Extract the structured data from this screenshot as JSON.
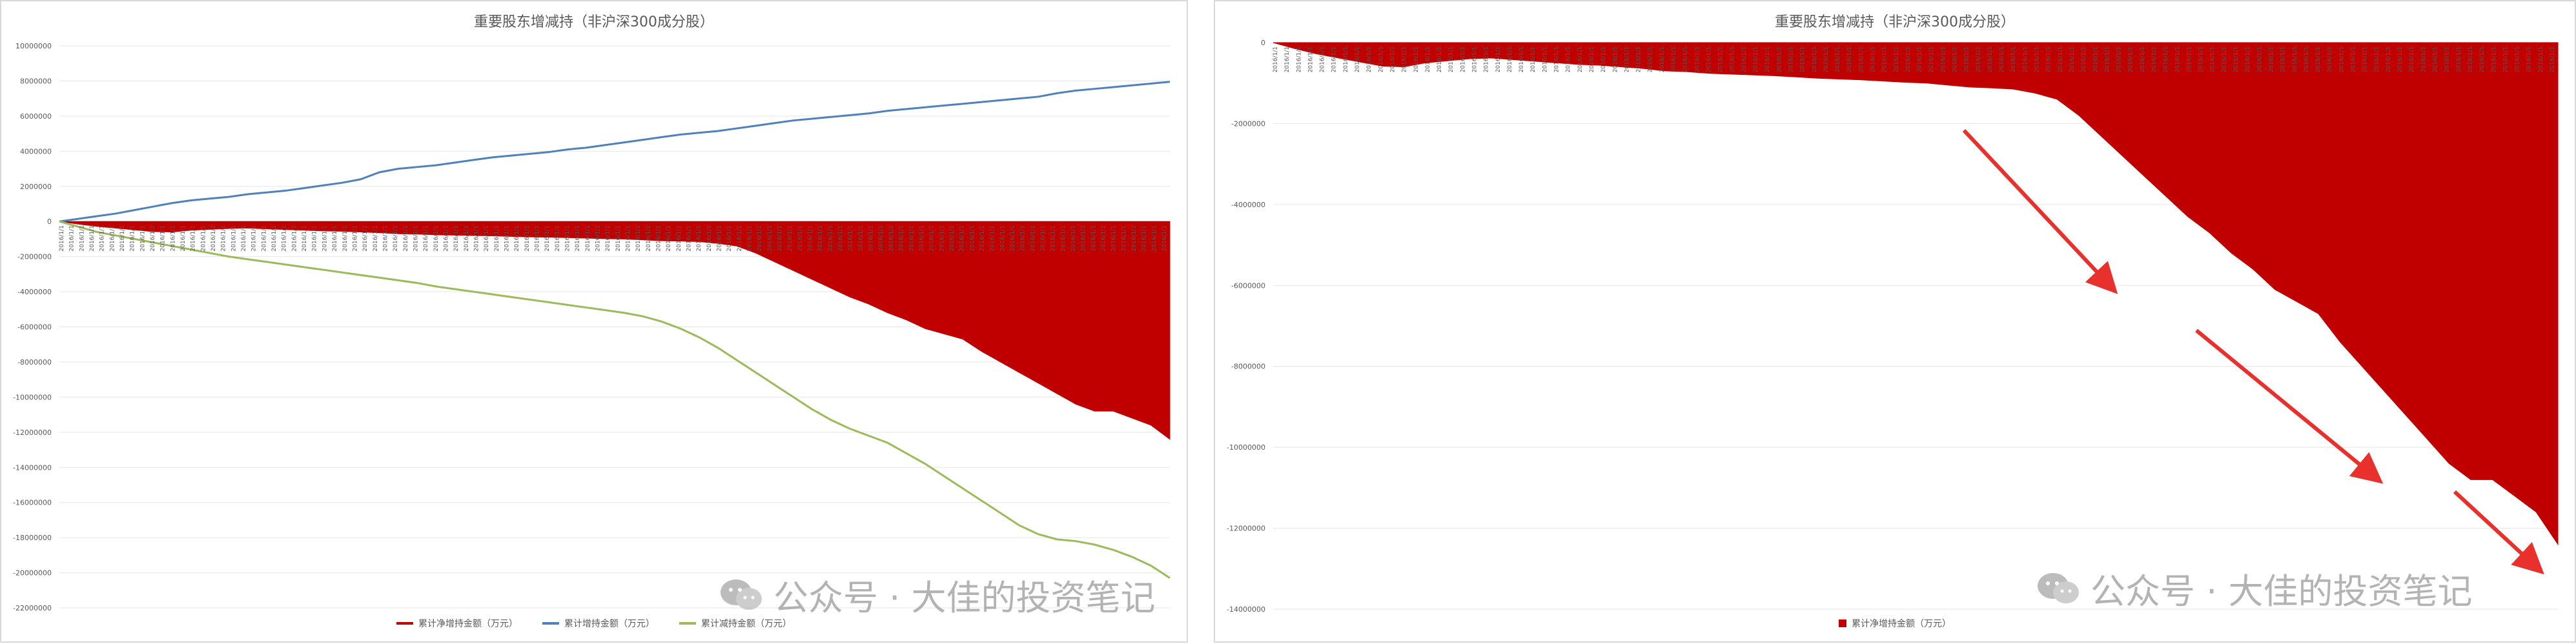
{
  "watermark": {
    "text": "公众号 · 大佳的投资笔记",
    "icon": "wechat-icon"
  },
  "chart_data": [
    {
      "type": "area",
      "title": "重要股东增减持（非沪深300成分股）",
      "ylim": [
        -22000000,
        10000000
      ],
      "y_ticks": [
        10000000,
        8000000,
        6000000,
        4000000,
        2000000,
        0,
        -2000000,
        -4000000,
        -6000000,
        -8000000,
        -10000000,
        -12000000,
        -14000000,
        -16000000,
        -18000000,
        -20000000,
        -22000000
      ],
      "grid": true,
      "legend": "bottom",
      "x_tick_label": "2016/1/1",
      "x_tick_count": 110,
      "x_points": 60,
      "series": [
        {
          "name": "累计净增持金额（万元）",
          "kind": "area",
          "color": "#c00000",
          "values": [
            0,
            -150000,
            -280000,
            -380000,
            -480000,
            -580000,
            -600000,
            -500000,
            -450000,
            -400000,
            -380000,
            -420000,
            -460000,
            -500000,
            -540000,
            -560000,
            -600000,
            -640000,
            -700000,
            -720000,
            -760000,
            -780000,
            -800000,
            -820000,
            -850000,
            -880000,
            -900000,
            -920000,
            -950000,
            -980000,
            -1000000,
            -1050000,
            -1100000,
            -1120000,
            -1150000,
            -1250000,
            -1400000,
            -1800000,
            -2300000,
            -2800000,
            -3300000,
            -3800000,
            -4300000,
            -4700000,
            -5200000,
            -5600000,
            -6100000,
            -6400000,
            -6700000,
            -7400000,
            -8000000,
            -8600000,
            -9200000,
            -9800000,
            -10400000,
            -10800000,
            -10800000,
            -11200000,
            -11600000,
            -12400000
          ]
        },
        {
          "name": "累计增持金额（万元）",
          "kind": "line",
          "color": "#4f81bd",
          "values": [
            0,
            150000,
            300000,
            450000,
            650000,
            850000,
            1050000,
            1200000,
            1300000,
            1400000,
            1550000,
            1650000,
            1750000,
            1900000,
            2050000,
            2200000,
            2400000,
            2800000,
            3000000,
            3100000,
            3200000,
            3350000,
            3500000,
            3650000,
            3750000,
            3850000,
            3950000,
            4100000,
            4200000,
            4350000,
            4500000,
            4650000,
            4800000,
            4950000,
            5050000,
            5150000,
            5300000,
            5450000,
            5600000,
            5750000,
            5850000,
            5950000,
            6050000,
            6150000,
            6300000,
            6400000,
            6500000,
            6600000,
            6700000,
            6800000,
            6900000,
            7000000,
            7100000,
            7300000,
            7450000,
            7550000,
            7650000,
            7750000,
            7850000,
            7950000
          ]
        },
        {
          "name": "累计减持金额（万元）",
          "kind": "line",
          "color": "#9bbb59",
          "values": [
            0,
            -300000,
            -600000,
            -800000,
            -1000000,
            -1200000,
            -1400000,
            -1600000,
            -1800000,
            -2000000,
            -2150000,
            -2300000,
            -2450000,
            -2600000,
            -2750000,
            -2900000,
            -3050000,
            -3200000,
            -3350000,
            -3500000,
            -3700000,
            -3850000,
            -4000000,
            -4150000,
            -4300000,
            -4450000,
            -4600000,
            -4750000,
            -4900000,
            -5050000,
            -5200000,
            -5400000,
            -5700000,
            -6100000,
            -6600000,
            -7200000,
            -7900000,
            -8600000,
            -9300000,
            -10000000,
            -10700000,
            -11300000,
            -11800000,
            -12200000,
            -12600000,
            -13200000,
            -13800000,
            -14500000,
            -15200000,
            -15900000,
            -16600000,
            -17300000,
            -17800000,
            -18100000,
            -18200000,
            -18400000,
            -18700000,
            -19100000,
            -19600000,
            -20300000
          ]
        }
      ]
    },
    {
      "type": "area",
      "title": "重要股东增减持（非沪深300成分股）",
      "ylim": [
        -14000000,
        0
      ],
      "y_ticks": [
        0,
        -2000000,
        -4000000,
        -6000000,
        -8000000,
        -10000000,
        -12000000,
        -14000000
      ],
      "grid": true,
      "legend": "bottom",
      "x_tick_label": "2016/1/1",
      "x_tick_count": 110,
      "x_points": 60,
      "series": [
        {
          "name": "累计净增持金额（万元）",
          "kind": "area",
          "color": "#c00000",
          "values": [
            0,
            -150000,
            -280000,
            -380000,
            -480000,
            -580000,
            -600000,
            -500000,
            -450000,
            -400000,
            -380000,
            -420000,
            -460000,
            -500000,
            -540000,
            -560000,
            -600000,
            -640000,
            -700000,
            -720000,
            -760000,
            -780000,
            -800000,
            -820000,
            -850000,
            -880000,
            -900000,
            -920000,
            -950000,
            -980000,
            -1000000,
            -1050000,
            -1100000,
            -1120000,
            -1150000,
            -1250000,
            -1400000,
            -1800000,
            -2300000,
            -2800000,
            -3300000,
            -3800000,
            -4300000,
            -4700000,
            -5200000,
            -5600000,
            -6100000,
            -6400000,
            -6700000,
            -7400000,
            -8000000,
            -8600000,
            -9200000,
            -9800000,
            -10400000,
            -10800000,
            -10800000,
            -11200000,
            -11600000,
            -12400000
          ]
        }
      ]
    }
  ]
}
